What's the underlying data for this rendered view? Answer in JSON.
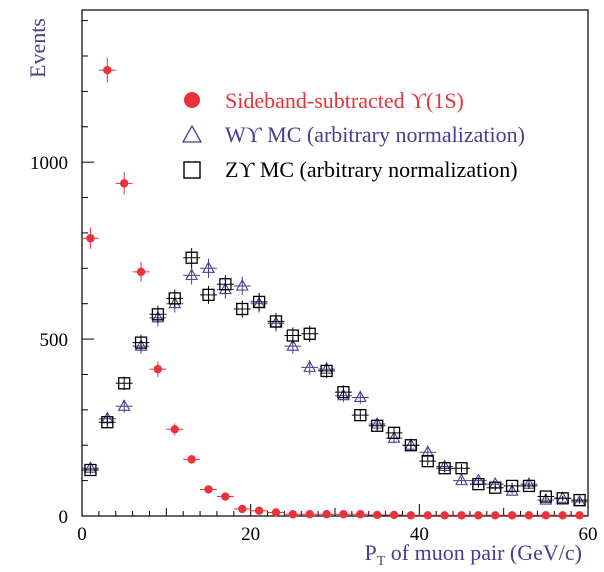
{
  "chart_data": {
    "type": "scatter",
    "xlabel_main": "P",
    "xlabel_sub": "T",
    "xlabel_rest": " of muon pair (GeV/c)",
    "ylabel": "Events",
    "xlim": [
      0,
      60
    ],
    "ylim": [
      0,
      1430
    ],
    "x_ticks": [
      0,
      20,
      40,
      60
    ],
    "y_ticks": [
      0,
      500,
      1000
    ],
    "grid": false,
    "legend_position": "top-right",
    "bin_half_width": 1,
    "series": [
      {
        "name": "Sideband-subtracted ϒ(1S)",
        "marker": "filled-circle",
        "color": "#e8323c",
        "label_color": "#e8323c",
        "x": [
          1,
          3,
          5,
          7,
          9,
          11,
          13,
          15,
          17,
          19,
          21,
          23,
          25,
          27,
          29,
          31,
          33,
          35,
          37,
          39,
          41,
          43,
          45,
          47,
          49,
          51,
          53,
          55,
          57,
          59
        ],
        "y": [
          785,
          1260,
          940,
          690,
          415,
          245,
          160,
          75,
          55,
          20,
          15,
          10,
          5,
          5,
          5,
          5,
          5,
          3,
          3,
          2,
          2,
          2,
          2,
          2,
          2,
          2,
          2,
          2,
          2,
          2
        ],
        "yerr": [
          30,
          35,
          32,
          28,
          22,
          17,
          12,
          9,
          8,
          5,
          4,
          4,
          3,
          3,
          3,
          3,
          3,
          2,
          2,
          2,
          2,
          2,
          2,
          2,
          2,
          2,
          2,
          2,
          2,
          2
        ]
      },
      {
        "name": "Wϒ MC (arbitrary normalization)",
        "marker": "open-triangle",
        "color": "#4a3d8f",
        "label_color": "#4a3d8f",
        "x": [
          1,
          3,
          5,
          7,
          9,
          11,
          13,
          15,
          17,
          19,
          21,
          23,
          25,
          27,
          29,
          31,
          33,
          35,
          37,
          39,
          41,
          43,
          45,
          47,
          49,
          51,
          53,
          55,
          57,
          59
        ],
        "y": [
          135,
          275,
          310,
          480,
          560,
          600,
          680,
          700,
          640,
          650,
          600,
          545,
          480,
          420,
          415,
          340,
          335,
          260,
          220,
          200,
          180,
          140,
          100,
          100,
          90,
          70,
          90,
          45,
          50,
          40
        ],
        "yerr": [
          12,
          17,
          18,
          22,
          24,
          25,
          26,
          27,
          26,
          26,
          25,
          24,
          22,
          21,
          21,
          18,
          18,
          16,
          15,
          14,
          13,
          12,
          10,
          10,
          9,
          8,
          9,
          7,
          7,
          6
        ]
      },
      {
        "name": "Zϒ MC (arbitrary normalization)",
        "marker": "open-square",
        "color": "#000000",
        "label_color": "#000000",
        "x": [
          1,
          3,
          5,
          7,
          9,
          11,
          13,
          15,
          17,
          19,
          21,
          23,
          25,
          27,
          29,
          31,
          33,
          35,
          37,
          39,
          41,
          43,
          45,
          47,
          49,
          51,
          53,
          55,
          57,
          59
        ],
        "y": [
          130,
          265,
          375,
          490,
          570,
          615,
          730,
          625,
          655,
          585,
          605,
          550,
          510,
          515,
          410,
          350,
          285,
          255,
          235,
          200,
          155,
          135,
          135,
          90,
          80,
          85,
          85,
          55,
          50,
          45
        ],
        "yerr": [
          12,
          16,
          19,
          22,
          24,
          25,
          27,
          25,
          26,
          24,
          25,
          24,
          23,
          23,
          20,
          19,
          17,
          16,
          15,
          14,
          12,
          12,
          12,
          10,
          9,
          9,
          9,
          7,
          7,
          7
        ]
      }
    ]
  }
}
